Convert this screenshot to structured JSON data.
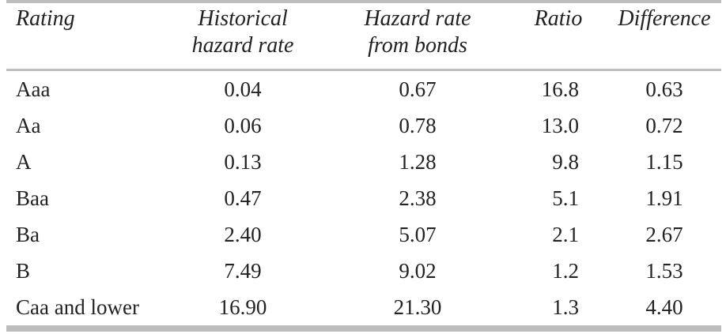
{
  "table": {
    "headers": {
      "rating": [
        "Rating"
      ],
      "historical": [
        "Historical",
        "hazard rate"
      ],
      "bonds": [
        "Hazard rate",
        "from bonds"
      ],
      "ratio": [
        "Ratio"
      ],
      "difference": [
        "Difference"
      ]
    },
    "rows": [
      {
        "rating": "Aaa",
        "historical": "0.04",
        "bonds": "0.67",
        "ratio": "16.8",
        "difference": "0.63"
      },
      {
        "rating": "Aa",
        "historical": "0.06",
        "bonds": "0.78",
        "ratio": "13.0",
        "difference": "0.72"
      },
      {
        "rating": "A",
        "historical": "0.13",
        "bonds": "1.28",
        "ratio": "9.8",
        "difference": "1.15"
      },
      {
        "rating": "Baa",
        "historical": "0.47",
        "bonds": "2.38",
        "ratio": "5.1",
        "difference": "1.91"
      },
      {
        "rating": "Ba",
        "historical": "2.40",
        "bonds": "5.07",
        "ratio": "2.1",
        "difference": "2.67"
      },
      {
        "rating": "B",
        "historical": "7.49",
        "bonds": "9.02",
        "ratio": "1.2",
        "difference": "1.53"
      },
      {
        "rating": "Caa and lower",
        "historical": "16.90",
        "bonds": "21.30",
        "ratio": "1.3",
        "difference": "4.40"
      }
    ]
  }
}
